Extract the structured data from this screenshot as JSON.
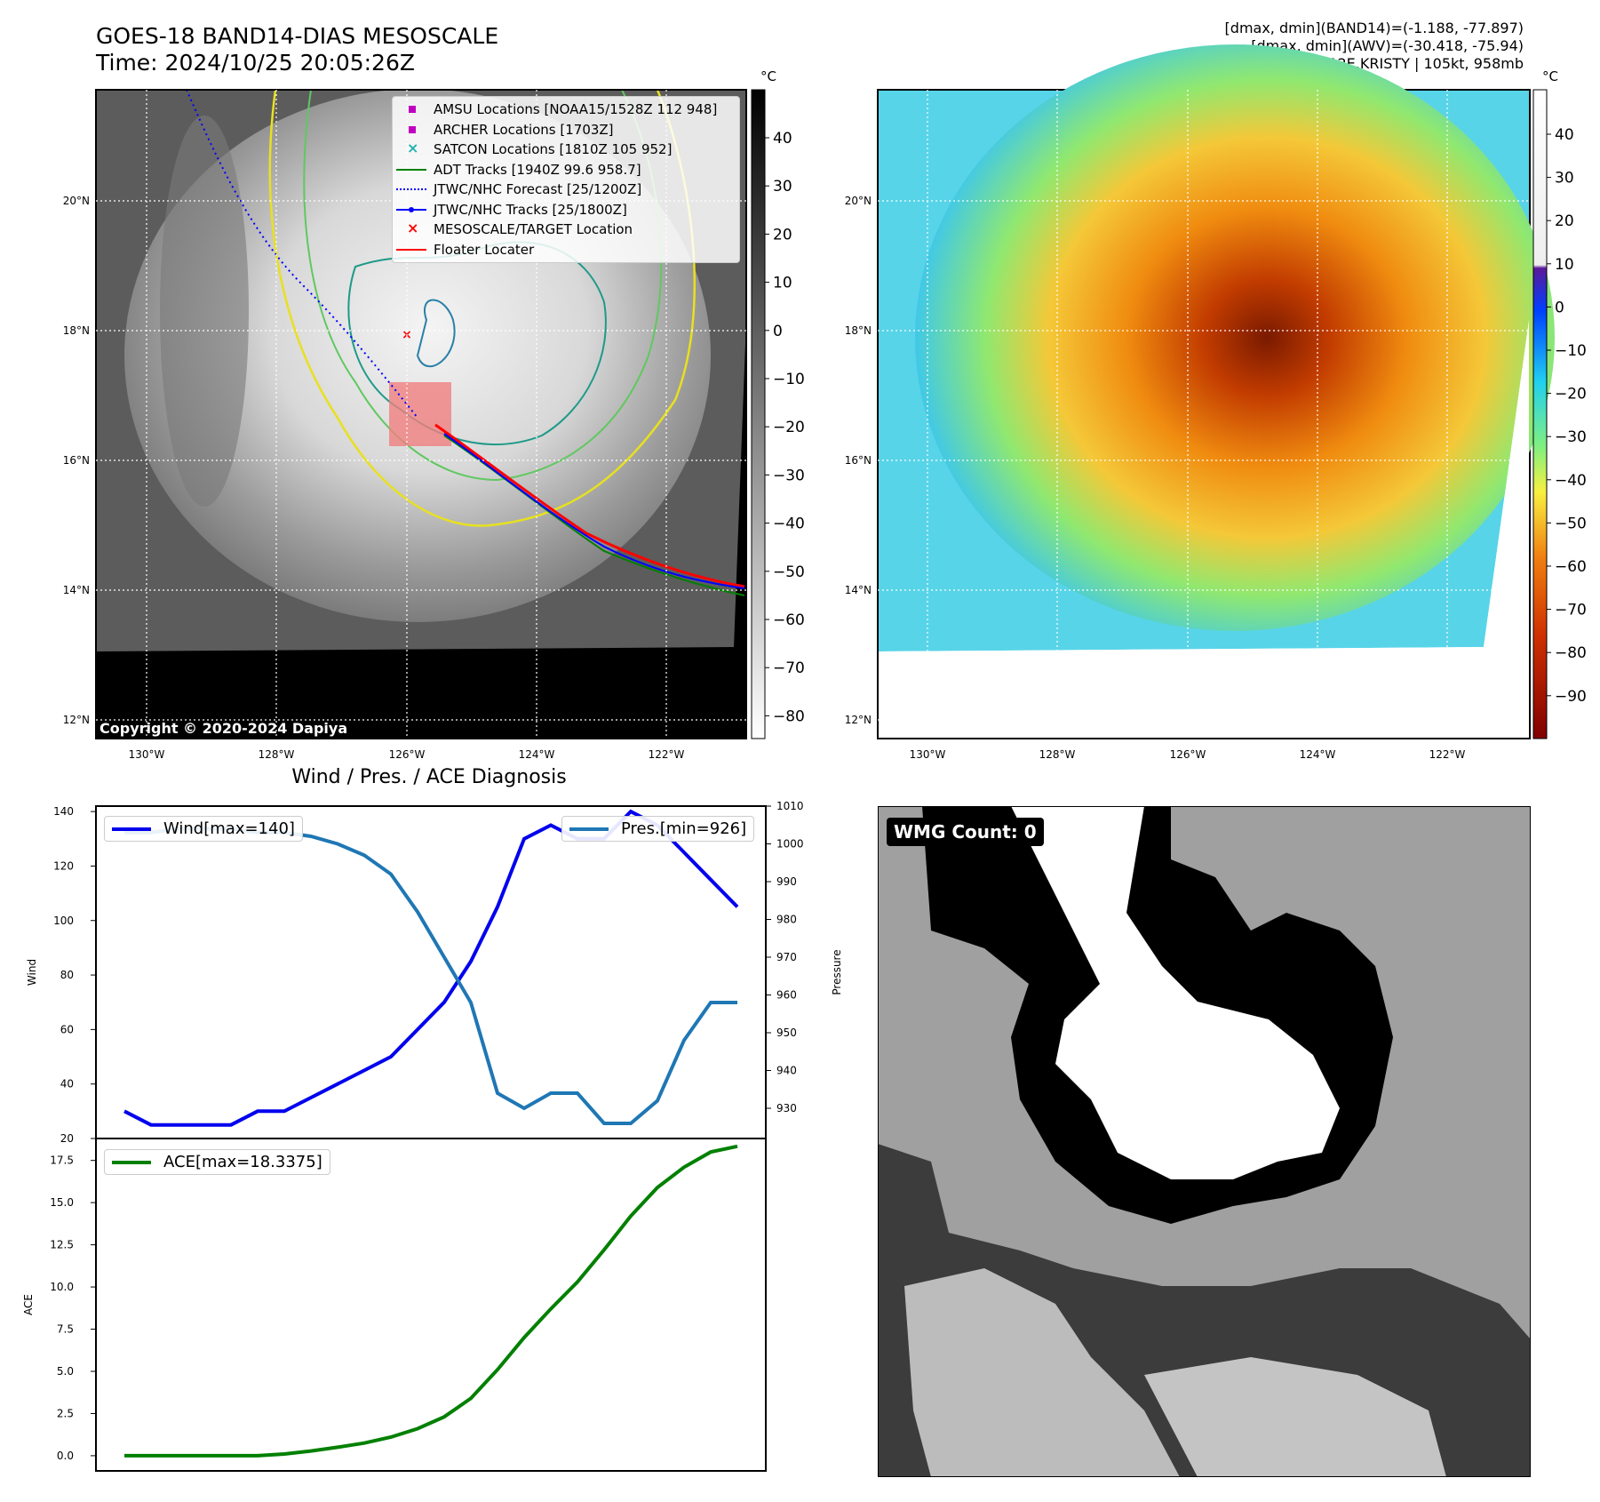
{
  "header": {
    "title_line1": "GOES-18 BAND14-DIAS MESOSCALE",
    "title_line2": "Time: 2024/10/25 20:05:26Z",
    "info_line1": "[dmax, dmin](BAND14)=(-1.188, -77.897)",
    "info_line2": "[dmax, dmin](AWV)=(-30.418, -75.94)",
    "info_line3": "12E.KRISTY | 105kt, 958mb"
  },
  "map_axes": {
    "lat_labels": [
      "20°N",
      "18°N",
      "16°N",
      "14°N",
      "12°N"
    ],
    "lon_labels": [
      "130°W",
      "128°W",
      "126°W",
      "124°W",
      "122°W"
    ]
  },
  "ir_panel": {
    "copyright": "Copyright © 2020-2024 Dapiya",
    "colorbar_unit": "°C",
    "colorbar_ticks": [
      "40",
      "30",
      "20",
      "10",
      "0",
      "−10",
      "−20",
      "−30",
      "−40",
      "−50",
      "−60",
      "−70",
      "−80"
    ],
    "legend": [
      {
        "label": "AMSU Locations [NOAA15/1528Z 112 948]",
        "symbol": "square",
        "color": "#c000c0"
      },
      {
        "label": "ARCHER Locations [1703Z]",
        "symbol": "square",
        "color": "#c000c0"
      },
      {
        "label": "SATCON Locations [1810Z 105 952]",
        "symbol": "x",
        "color": "#20b0b0"
      },
      {
        "label": "ADT Tracks [1940Z 99.6 958.7]",
        "symbol": "line",
        "color": "#008000"
      },
      {
        "label": "JTWC/NHC Forecast [25/1200Z]",
        "symbol": "dotted",
        "color": "#0000ff"
      },
      {
        "label": "JTWC/NHC Tracks [25/1800Z]",
        "symbol": "line-dot",
        "color": "#0000ff"
      },
      {
        "label": "MESOSCALE/TARGET Location",
        "symbol": "x",
        "color": "#ff0000"
      },
      {
        "label": "Floater Locater",
        "symbol": "line",
        "color": "#ff0000"
      }
    ]
  },
  "awv_panel": {
    "colorbar_unit": "°C",
    "colorbar_ticks": [
      "40",
      "30",
      "20",
      "10",
      "0",
      "−10",
      "−20",
      "−30",
      "−40",
      "−50",
      "−60",
      "−70",
      "−80",
      "−90"
    ]
  },
  "wmg_panel": {
    "label": "WMG Count: 0"
  },
  "diagnosis": {
    "title": "Wind / Pres. / ACE Diagnosis",
    "wind_legend": "Wind[max=140]",
    "pres_legend": "Pres.[min=926]",
    "ace_legend": "ACE[max=18.3375]",
    "ylabel_wind": "Wind",
    "ylabel_pres": "Pressure",
    "ylabel_ace": "ACE",
    "colors": {
      "wind": "#0000ee",
      "pres": "#1f77b4",
      "ace": "#008000"
    }
  },
  "chart_data": [
    {
      "type": "line",
      "title": "Wind / Pres. / ACE Diagnosis",
      "x": [
        0,
        1,
        2,
        3,
        4,
        5,
        6,
        7,
        8,
        9,
        10,
        11,
        12,
        13,
        14,
        15,
        16,
        17,
        18,
        19,
        20,
        21,
        22,
        23
      ],
      "ylabel": "Wind",
      "y2label": "Pressure",
      "ylim": [
        20,
        142
      ],
      "y2lim": [
        922,
        1010
      ],
      "yticks": [
        "140",
        "120",
        "100",
        "80",
        "60",
        "40",
        "20"
      ],
      "y2ticks": [
        "1010",
        "1000",
        "990",
        "980",
        "970",
        "960",
        "950",
        "940",
        "930"
      ],
      "legend_position": "top",
      "series": [
        {
          "name": "Wind[max=140]",
          "axis": "left",
          "values": [
            30,
            25,
            25,
            25,
            25,
            30,
            30,
            35,
            40,
            45,
            50,
            60,
            70,
            85,
            105,
            130,
            135,
            130,
            130,
            140,
            135,
            125,
            115,
            105
          ]
        },
        {
          "name": "Pres.[min=926]",
          "axis": "right",
          "values": [
            1003,
            1003,
            1004,
            1004,
            1004,
            1003,
            1003,
            1002,
            1000,
            997,
            992,
            982,
            970,
            958,
            934,
            930,
            934,
            934,
            926,
            926,
            932,
            948,
            958,
            958
          ]
        }
      ]
    },
    {
      "type": "line",
      "title": "",
      "x": [
        0,
        1,
        2,
        3,
        4,
        5,
        6,
        7,
        8,
        9,
        10,
        11,
        12,
        13,
        14,
        15,
        16,
        17,
        18,
        19,
        20,
        21,
        22,
        23
      ],
      "ylabel": "ACE",
      "ylim": [
        -0.9,
        18.8
      ],
      "yticks": [
        "17.5",
        "15.0",
        "12.5",
        "10.0",
        "7.5",
        "5.0",
        "2.5",
        "0.0"
      ],
      "legend_position": "top-left",
      "series": [
        {
          "name": "ACE[max=18.3375]",
          "values": [
            0,
            0,
            0,
            0,
            0,
            0,
            0.1,
            0.28,
            0.5,
            0.75,
            1.1,
            1.6,
            2.3,
            3.4,
            5.1,
            7.0,
            8.7,
            10.3,
            12.2,
            14.2,
            15.9,
            17.1,
            18.0,
            18.3375
          ]
        }
      ]
    }
  ]
}
